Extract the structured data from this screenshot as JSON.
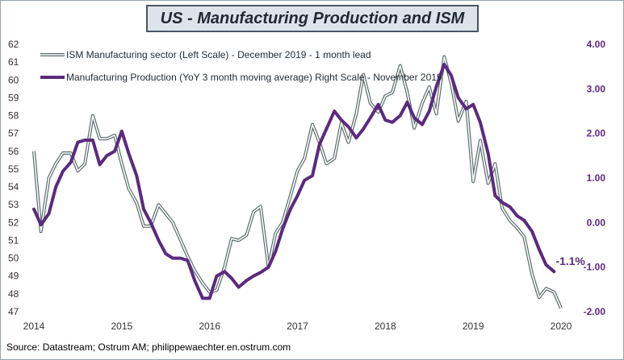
{
  "title": "US - Manufacturing Production and ISM",
  "source": "Source: Datastream; Ostrum AM; philippewaechter.en.ostrum.com",
  "colors": {
    "ism_line": "#5c6b6b",
    "production_line": "#5b2a7e",
    "right_axis_text": "#5b2a7e",
    "title_box_fill": "#dde3ea",
    "title_box_border": "#4a5563"
  },
  "chart_data": {
    "type": "line",
    "legend_placement": "top-left",
    "grid": false,
    "x_ticks": [
      "2014",
      "2015",
      "2016",
      "2017",
      "2018",
      "2019",
      "2020"
    ],
    "xlim": [
      2014,
      2020
    ],
    "left_axis": {
      "ticks": [
        "47",
        "48",
        "49",
        "50",
        "51",
        "52",
        "53",
        "54",
        "55",
        "56",
        "57",
        "58",
        "59",
        "60",
        "61",
        "62"
      ],
      "ylim": [
        47,
        62
      ]
    },
    "right_axis": {
      "ticks": [
        "-2.00",
        "-1.00",
        "0.00",
        "1.00",
        "2.00",
        "3.00",
        "4.00"
      ],
      "ylim": [
        -2,
        4
      ]
    },
    "annotation": "-1.1%",
    "series": [
      {
        "name": "ISM Manufacturing sector (Left Scale) - December 2019 - 1 month lead",
        "axis": "left",
        "style": "double",
        "points": [
          [
            2014.0,
            56.0
          ],
          [
            2014.08,
            51.5
          ],
          [
            2014.17,
            54.5
          ],
          [
            2014.25,
            55.3
          ],
          [
            2014.33,
            55.9
          ],
          [
            2014.42,
            55.9
          ],
          [
            2014.5,
            54.9
          ],
          [
            2014.58,
            55.3
          ],
          [
            2014.67,
            58.0
          ],
          [
            2014.75,
            56.7
          ],
          [
            2014.83,
            56.7
          ],
          [
            2014.92,
            56.9
          ],
          [
            2015.0,
            55.3
          ],
          [
            2015.08,
            53.9
          ],
          [
            2015.17,
            53.1
          ],
          [
            2015.25,
            51.8
          ],
          [
            2015.33,
            51.8
          ],
          [
            2015.42,
            53.0
          ],
          [
            2015.5,
            52.5
          ],
          [
            2015.58,
            52.0
          ],
          [
            2015.67,
            51.0
          ],
          [
            2015.75,
            50.1
          ],
          [
            2015.83,
            49.3
          ],
          [
            2015.92,
            48.6
          ],
          [
            2016.0,
            48.1
          ],
          [
            2016.08,
            48.2
          ],
          [
            2016.17,
            49.5
          ],
          [
            2016.25,
            51.1
          ],
          [
            2016.33,
            51.0
          ],
          [
            2016.42,
            51.3
          ],
          [
            2016.5,
            52.6
          ],
          [
            2016.58,
            52.9
          ],
          [
            2016.67,
            49.5
          ],
          [
            2016.75,
            51.4
          ],
          [
            2016.83,
            52.0
          ],
          [
            2016.92,
            53.5
          ],
          [
            2017.0,
            54.9
          ],
          [
            2017.08,
            55.6
          ],
          [
            2017.17,
            57.5
          ],
          [
            2017.25,
            56.5
          ],
          [
            2017.33,
            55.3
          ],
          [
            2017.42,
            55.6
          ],
          [
            2017.5,
            57.6
          ],
          [
            2017.58,
            56.5
          ],
          [
            2017.67,
            58.1
          ],
          [
            2017.75,
            60.3
          ],
          [
            2017.83,
            58.7
          ],
          [
            2017.92,
            58.2
          ],
          [
            2018.0,
            59.1
          ],
          [
            2018.08,
            59.3
          ],
          [
            2018.17,
            60.8
          ],
          [
            2018.25,
            59.3
          ],
          [
            2018.33,
            57.3
          ],
          [
            2018.42,
            58.7
          ],
          [
            2018.5,
            59.6
          ],
          [
            2018.58,
            58.1
          ],
          [
            2018.67,
            61.3
          ],
          [
            2018.75,
            59.8
          ],
          [
            2018.83,
            57.7
          ],
          [
            2018.92,
            58.8
          ],
          [
            2019.0,
            54.3
          ],
          [
            2019.08,
            56.6
          ],
          [
            2019.17,
            54.2
          ],
          [
            2019.25,
            55.3
          ],
          [
            2019.33,
            52.8
          ],
          [
            2019.42,
            52.1
          ],
          [
            2019.5,
            51.7
          ],
          [
            2019.58,
            51.2
          ],
          [
            2019.67,
            49.1
          ],
          [
            2019.75,
            47.8
          ],
          [
            2019.83,
            48.3
          ],
          [
            2019.92,
            48.1
          ],
          [
            2020.0,
            47.2
          ]
        ]
      },
      {
        "name": "Manufacturing Production (YoY 3 month moving average) Right Scale - November 2019",
        "axis": "right",
        "style": "thick",
        "points": [
          [
            2014.0,
            0.3
          ],
          [
            2014.08,
            -0.05
          ],
          [
            2014.17,
            0.2
          ],
          [
            2014.25,
            0.8
          ],
          [
            2014.33,
            1.15
          ],
          [
            2014.42,
            1.35
          ],
          [
            2014.5,
            1.8
          ],
          [
            2014.58,
            1.85
          ],
          [
            2014.67,
            1.85
          ],
          [
            2014.75,
            1.3
          ],
          [
            2014.83,
            1.5
          ],
          [
            2014.92,
            1.6
          ],
          [
            2015.0,
            2.05
          ],
          [
            2015.08,
            1.55
          ],
          [
            2015.17,
            1.05
          ],
          [
            2015.25,
            0.3
          ],
          [
            2015.33,
            0.0
          ],
          [
            2015.42,
            -0.4
          ],
          [
            2015.5,
            -0.7
          ],
          [
            2015.58,
            -0.8
          ],
          [
            2015.67,
            -0.8
          ],
          [
            2015.75,
            -0.85
          ],
          [
            2015.83,
            -1.3
          ],
          [
            2015.92,
            -1.7
          ],
          [
            2016.0,
            -1.7
          ],
          [
            2016.08,
            -1.2
          ],
          [
            2016.17,
            -1.1
          ],
          [
            2016.25,
            -1.25
          ],
          [
            2016.33,
            -1.45
          ],
          [
            2016.42,
            -1.3
          ],
          [
            2016.5,
            -1.2
          ],
          [
            2016.58,
            -1.12
          ],
          [
            2016.67,
            -1.0
          ],
          [
            2016.75,
            -0.65
          ],
          [
            2016.83,
            -0.15
          ],
          [
            2016.92,
            0.3
          ],
          [
            2017.0,
            0.6
          ],
          [
            2017.08,
            0.95
          ],
          [
            2017.17,
            1.05
          ],
          [
            2017.25,
            1.75
          ],
          [
            2017.33,
            2.1
          ],
          [
            2017.42,
            2.5
          ],
          [
            2017.5,
            2.3
          ],
          [
            2017.58,
            2.15
          ],
          [
            2017.67,
            1.9
          ],
          [
            2017.75,
            2.1
          ],
          [
            2017.83,
            2.35
          ],
          [
            2017.92,
            2.65
          ],
          [
            2018.0,
            2.3
          ],
          [
            2018.08,
            2.25
          ],
          [
            2018.17,
            2.4
          ],
          [
            2018.25,
            2.7
          ],
          [
            2018.33,
            2.35
          ],
          [
            2018.42,
            2.2
          ],
          [
            2018.5,
            2.5
          ],
          [
            2018.58,
            3.05
          ],
          [
            2018.67,
            3.55
          ],
          [
            2018.75,
            3.3
          ],
          [
            2018.83,
            2.8
          ],
          [
            2018.92,
            2.55
          ],
          [
            2019.0,
            2.65
          ],
          [
            2019.08,
            2.25
          ],
          [
            2019.17,
            1.55
          ],
          [
            2019.25,
            0.6
          ],
          [
            2019.33,
            0.45
          ],
          [
            2019.42,
            0.35
          ],
          [
            2019.5,
            0.15
          ],
          [
            2019.58,
            0.05
          ],
          [
            2019.67,
            -0.2
          ],
          [
            2019.75,
            -0.6
          ],
          [
            2019.83,
            -0.95
          ],
          [
            2019.92,
            -1.1
          ]
        ]
      }
    ]
  }
}
